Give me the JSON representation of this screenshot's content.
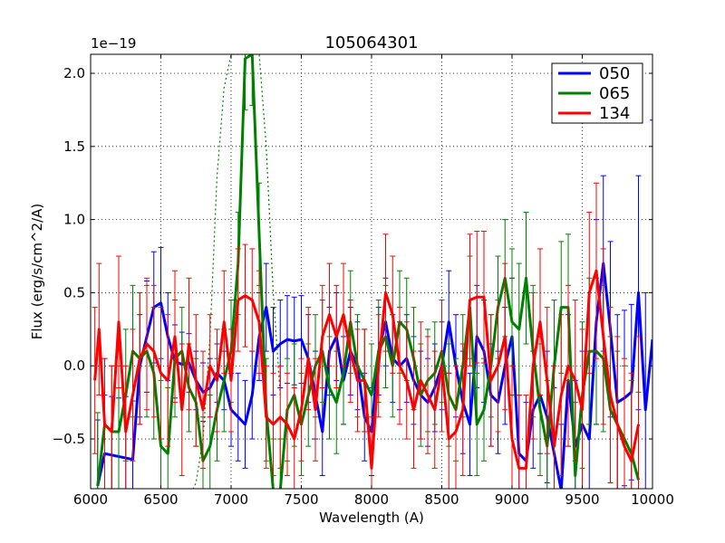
{
  "chart_data": {
    "type": "line",
    "title": "105064301",
    "xlabel": "Wavelength (A)",
    "ylabel": "Flux (erg/s/cm^2/A)",
    "offset_text": "1e−19",
    "xlim": [
      6000,
      10000
    ],
    "ylim": [
      -0.84,
      2.13
    ],
    "grid": true,
    "legend_position": "top-right",
    "x_ticks": [
      6000,
      6500,
      7000,
      7500,
      8000,
      8500,
      9000,
      9500,
      10000
    ],
    "x_tick_labels": [
      "6000",
      "6500",
      "7000",
      "7500",
      "8000",
      "8500",
      "9000",
      "9500",
      "10000"
    ],
    "y_ticks": [
      -0.5,
      0.0,
      0.5,
      1.0,
      1.5,
      2.0
    ],
    "y_tick_labels": [
      "−0.5",
      "0.0",
      "0.5",
      "1.0",
      "1.5",
      "2.0"
    ],
    "series": [
      {
        "name": "050",
        "color": "#0000ff",
        "x": [
          6050,
          6100,
          6150,
          6200,
          6250,
          6300,
          6350,
          6400,
          6450,
          6500,
          6550,
          6600,
          6650,
          6700,
          6750,
          6800,
          6850,
          6900,
          6950,
          7000,
          7050,
          7100,
          7150,
          7200,
          7250,
          7300,
          7350,
          7400,
          7450,
          7500,
          7550,
          7600,
          7650,
          7700,
          7750,
          7800,
          7850,
          7900,
          7950,
          8000,
          8050,
          8100,
          8150,
          8200,
          8250,
          8300,
          8350,
          8400,
          8450,
          8500,
          8550,
          8600,
          8650,
          8700,
          8750,
          8800,
          8850,
          8900,
          8950,
          9000,
          9050,
          9100,
          9150,
          9200,
          9250,
          9300,
          9350,
          9400,
          9450,
          9500,
          9550,
          9600,
          9650,
          9700,
          9750,
          9800,
          9850,
          9900,
          9950,
          10000
        ],
        "y": [
          -0.82,
          -0.6,
          -0.61,
          -0.62,
          -0.63,
          -0.64,
          0.0,
          0.2,
          0.4,
          0.43,
          0.2,
          0.03,
          0.01,
          0.02,
          -0.1,
          -0.18,
          -0.15,
          -0.05,
          -0.1,
          -0.3,
          -0.35,
          -0.4,
          -0.2,
          0.2,
          0.4,
          0.1,
          0.15,
          0.18,
          0.17,
          0.18,
          0.05,
          -0.2,
          -0.45,
          0.1,
          0.2,
          -0.1,
          0.1,
          0.0,
          -0.35,
          -0.45,
          0.1,
          0.3,
          0.05,
          0.0,
          0.05,
          -0.1,
          -0.2,
          -0.25,
          -0.15,
          0.0,
          0.3,
          0.0,
          -0.25,
          -0.4,
          0.2,
          0.1,
          -0.2,
          -0.25,
          0.0,
          0.2,
          -0.6,
          -0.65,
          -0.3,
          -0.2,
          -0.35,
          -0.6,
          -0.85,
          -0.1,
          -0.55,
          -0.4,
          -0.5,
          0.3,
          0.7,
          0.25,
          -0.25,
          -0.22,
          -0.18,
          0.5,
          -0.3,
          0.18
        ],
        "yerr": [
          0.45,
          0.4,
          0.4,
          0.4,
          0.42,
          0.4,
          0.35,
          0.38,
          0.38,
          0.38,
          0.3,
          0.25,
          0.22,
          0.2,
          0.2,
          0.2,
          0.2,
          0.2,
          0.2,
          0.25,
          0.3,
          0.3,
          0.3,
          0.3,
          0.3,
          0.3,
          0.3,
          0.3,
          0.3,
          0.3,
          0.3,
          0.3,
          0.3,
          0.3,
          0.3,
          0.3,
          0.3,
          0.3,
          0.3,
          0.3,
          0.3,
          0.3,
          0.3,
          0.3,
          0.3,
          0.3,
          0.3,
          0.3,
          0.3,
          0.3,
          0.35,
          0.35,
          0.35,
          0.35,
          0.35,
          0.35,
          0.35,
          0.35,
          0.4,
          0.4,
          0.4,
          0.4,
          0.4,
          0.4,
          0.45,
          0.45,
          0.45,
          0.45,
          0.45,
          0.5,
          0.6,
          0.7,
          0.6,
          0.6,
          0.6,
          0.6,
          0.6,
          0.8,
          0.8,
          1.5
        ]
      },
      {
        "name": "065",
        "color": "#008000",
        "x": [
          6050,
          6100,
          6150,
          6200,
          6250,
          6300,
          6350,
          6400,
          6450,
          6500,
          6550,
          6600,
          6650,
          6700,
          6750,
          6800,
          6850,
          6900,
          6950,
          7000,
          7050,
          7100,
          7150,
          7200,
          7250,
          7300,
          7350,
          7400,
          7450,
          7500,
          7550,
          7600,
          7650,
          7700,
          7750,
          7800,
          7850,
          7900,
          7950,
          8000,
          8050,
          8100,
          8150,
          8200,
          8250,
          8300,
          8350,
          8400,
          8450,
          8500,
          8550,
          8600,
          8650,
          8700,
          8750,
          8800,
          8850,
          8900,
          8950,
          9000,
          9050,
          9100,
          9150,
          9200,
          9250,
          9300,
          9350,
          9400,
          9450,
          9500,
          9550,
          9600,
          9650,
          9700,
          9750,
          9800,
          9850,
          9900
        ],
        "y": [
          -0.82,
          -0.4,
          -0.45,
          -0.45,
          -0.2,
          0.1,
          0.05,
          0.1,
          -0.05,
          -0.55,
          -0.6,
          0.05,
          0.1,
          -0.15,
          -0.25,
          -0.65,
          -0.55,
          -0.3,
          -0.1,
          0.1,
          0.7,
          2.1,
          2.13,
          0.9,
          -0.3,
          -0.85,
          -0.85,
          -0.3,
          -0.2,
          -0.4,
          -0.2,
          0.0,
          0.1,
          -0.15,
          -0.25,
          -0.05,
          0.3,
          0.0,
          -0.1,
          -0.2,
          0.1,
          0.2,
          0.0,
          0.3,
          0.25,
          0.05,
          -0.2,
          -0.1,
          -0.05,
          0.1,
          -0.2,
          -0.3,
          0.0,
          0.4,
          -0.4,
          -0.3,
          0.0,
          0.4,
          0.6,
          0.3,
          0.25,
          0.6,
          0.1,
          -0.3,
          -0.55,
          0.0,
          0.4,
          0.4,
          -0.75,
          -0.2,
          0.1,
          0.1,
          0.05,
          -0.3,
          -0.4,
          -0.5,
          -0.6,
          -0.78
        ],
        "yerr": [
          0.5,
          0.45,
          0.45,
          0.45,
          0.45,
          0.45,
          0.45,
          0.45,
          0.45,
          0.45,
          0.45,
          0.4,
          0.3,
          0.3,
          0.3,
          0.3,
          0.35,
          0.35,
          0.35,
          0.35,
          0.35,
          0.35,
          0.35,
          0.35,
          0.35,
          0.35,
          0.35,
          0.35,
          0.35,
          0.35,
          0.35,
          0.35,
          0.35,
          0.35,
          0.35,
          0.35,
          0.35,
          0.35,
          0.35,
          0.35,
          0.35,
          0.35,
          0.35,
          0.35,
          0.35,
          0.35,
          0.35,
          0.35,
          0.35,
          0.35,
          0.35,
          0.35,
          0.35,
          0.35,
          0.35,
          0.35,
          0.35,
          0.35,
          0.4,
          0.5,
          0.45,
          0.45,
          0.45,
          0.45,
          0.45,
          0.45,
          0.45,
          0.5,
          0.5,
          0.5,
          0.5,
          0.5,
          0.5,
          0.5,
          0.5,
          0.5,
          0.5,
          0.6
        ],
        "envelope_x": [
          6700,
          6750,
          6800,
          6850,
          6900,
          6950,
          7000,
          7050,
          7100,
          7150,
          7200,
          7250,
          7300,
          7350
        ],
        "envelope_y": [
          -0.9,
          -0.8,
          -0.5,
          0.2,
          1.3,
          1.9,
          2.13,
          2.13,
          2.13,
          2.13,
          2.13,
          1.5,
          0.5,
          -0.2
        ]
      },
      {
        "name": "134",
        "color": "#ff0000",
        "x": [
          6030,
          6060,
          6100,
          6150,
          6200,
          6250,
          6300,
          6350,
          6400,
          6450,
          6500,
          6550,
          6600,
          6650,
          6700,
          6750,
          6800,
          6850,
          6900,
          6950,
          7000,
          7050,
          7100,
          7150,
          7200,
          7250,
          7300,
          7350,
          7400,
          7450,
          7500,
          7550,
          7600,
          7650,
          7700,
          7750,
          7800,
          7850,
          7900,
          7950,
          8000,
          8050,
          8100,
          8150,
          8200,
          8250,
          8300,
          8350,
          8400,
          8450,
          8500,
          8550,
          8600,
          8650,
          8700,
          8750,
          8800,
          8850,
          8900,
          8950,
          9000,
          9050,
          9100,
          9150,
          9200,
          9250,
          9300,
          9350,
          9400,
          9450,
          9500,
          9550,
          9600,
          9650,
          9700,
          9750,
          9800,
          9850,
          9900
        ],
        "y": [
          -0.1,
          0.25,
          -0.4,
          -0.45,
          0.3,
          -0.45,
          -0.2,
          0.05,
          0.15,
          0.1,
          -0.05,
          -0.1,
          0.2,
          -0.3,
          0.15,
          -0.1,
          -0.3,
          0.0,
          -0.1,
          0.3,
          -0.1,
          0.45,
          0.48,
          0.45,
          0.3,
          -0.35,
          -0.4,
          -0.35,
          -0.4,
          -0.5,
          -0.3,
          0.05,
          -0.3,
          0.2,
          0.35,
          0.2,
          0.35,
          0.1,
          -0.1,
          -0.1,
          -0.7,
          0.0,
          0.5,
          0.35,
          0.0,
          -0.1,
          -0.3,
          -0.1,
          -0.2,
          -0.3,
          0.0,
          -0.5,
          -0.45,
          -0.3,
          0.45,
          0.47,
          0.47,
          -0.1,
          0.0,
          0.2,
          -0.5,
          -0.7,
          -0.7,
          0.0,
          0.3,
          -0.1,
          -0.55,
          -0.2,
          0.0,
          -0.1,
          -0.3,
          0.5,
          0.65,
          0.2,
          -0.2,
          -0.4,
          -0.55,
          -0.65,
          -0.4
        ],
        "yerr": [
          0.5,
          0.45,
          0.45,
          0.45,
          0.45,
          0.45,
          0.45,
          0.45,
          0.45,
          0.45,
          0.45,
          0.45,
          0.45,
          0.45,
          0.45,
          0.45,
          0.4,
          0.35,
          0.35,
          0.35,
          0.35,
          0.35,
          0.35,
          0.35,
          0.35,
          0.35,
          0.35,
          0.35,
          0.35,
          0.35,
          0.35,
          0.35,
          0.35,
          0.35,
          0.35,
          0.35,
          0.35,
          0.35,
          0.35,
          0.35,
          0.35,
          0.35,
          0.4,
          0.4,
          0.4,
          0.4,
          0.4,
          0.4,
          0.4,
          0.4,
          0.45,
          0.45,
          0.45,
          0.45,
          0.45,
          0.45,
          0.45,
          0.45,
          0.45,
          0.5,
          0.5,
          0.5,
          0.5,
          0.5,
          0.5,
          0.5,
          0.55,
          0.55,
          0.55,
          0.55,
          0.55,
          0.55,
          0.6,
          0.6,
          0.6,
          0.6,
          0.6,
          0.6,
          0.6
        ]
      }
    ]
  }
}
